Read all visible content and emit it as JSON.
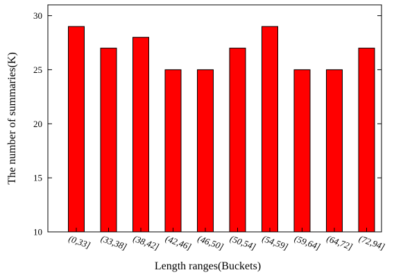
{
  "chart_data": {
    "type": "bar",
    "title": "",
    "xlabel": "Length ranges(Buckets)",
    "ylabel": "The number of summaries(K)",
    "categories": [
      "(0,33]",
      "(33,38]",
      "(38,42]",
      "(42,46]",
      "(46,50]",
      "(50,54]",
      "(54,59]",
      "(59,64]",
      "(64,72]",
      "(72,94]"
    ],
    "values": [
      29,
      27,
      28,
      25,
      25,
      27,
      29,
      25,
      25,
      27
    ],
    "ylim": [
      10,
      31
    ],
    "yticks": [
      10,
      15,
      20,
      25,
      30
    ],
    "grid": false,
    "legend": "none",
    "bar_color": "#ff0000",
    "bar_edge_color": "#000000"
  }
}
